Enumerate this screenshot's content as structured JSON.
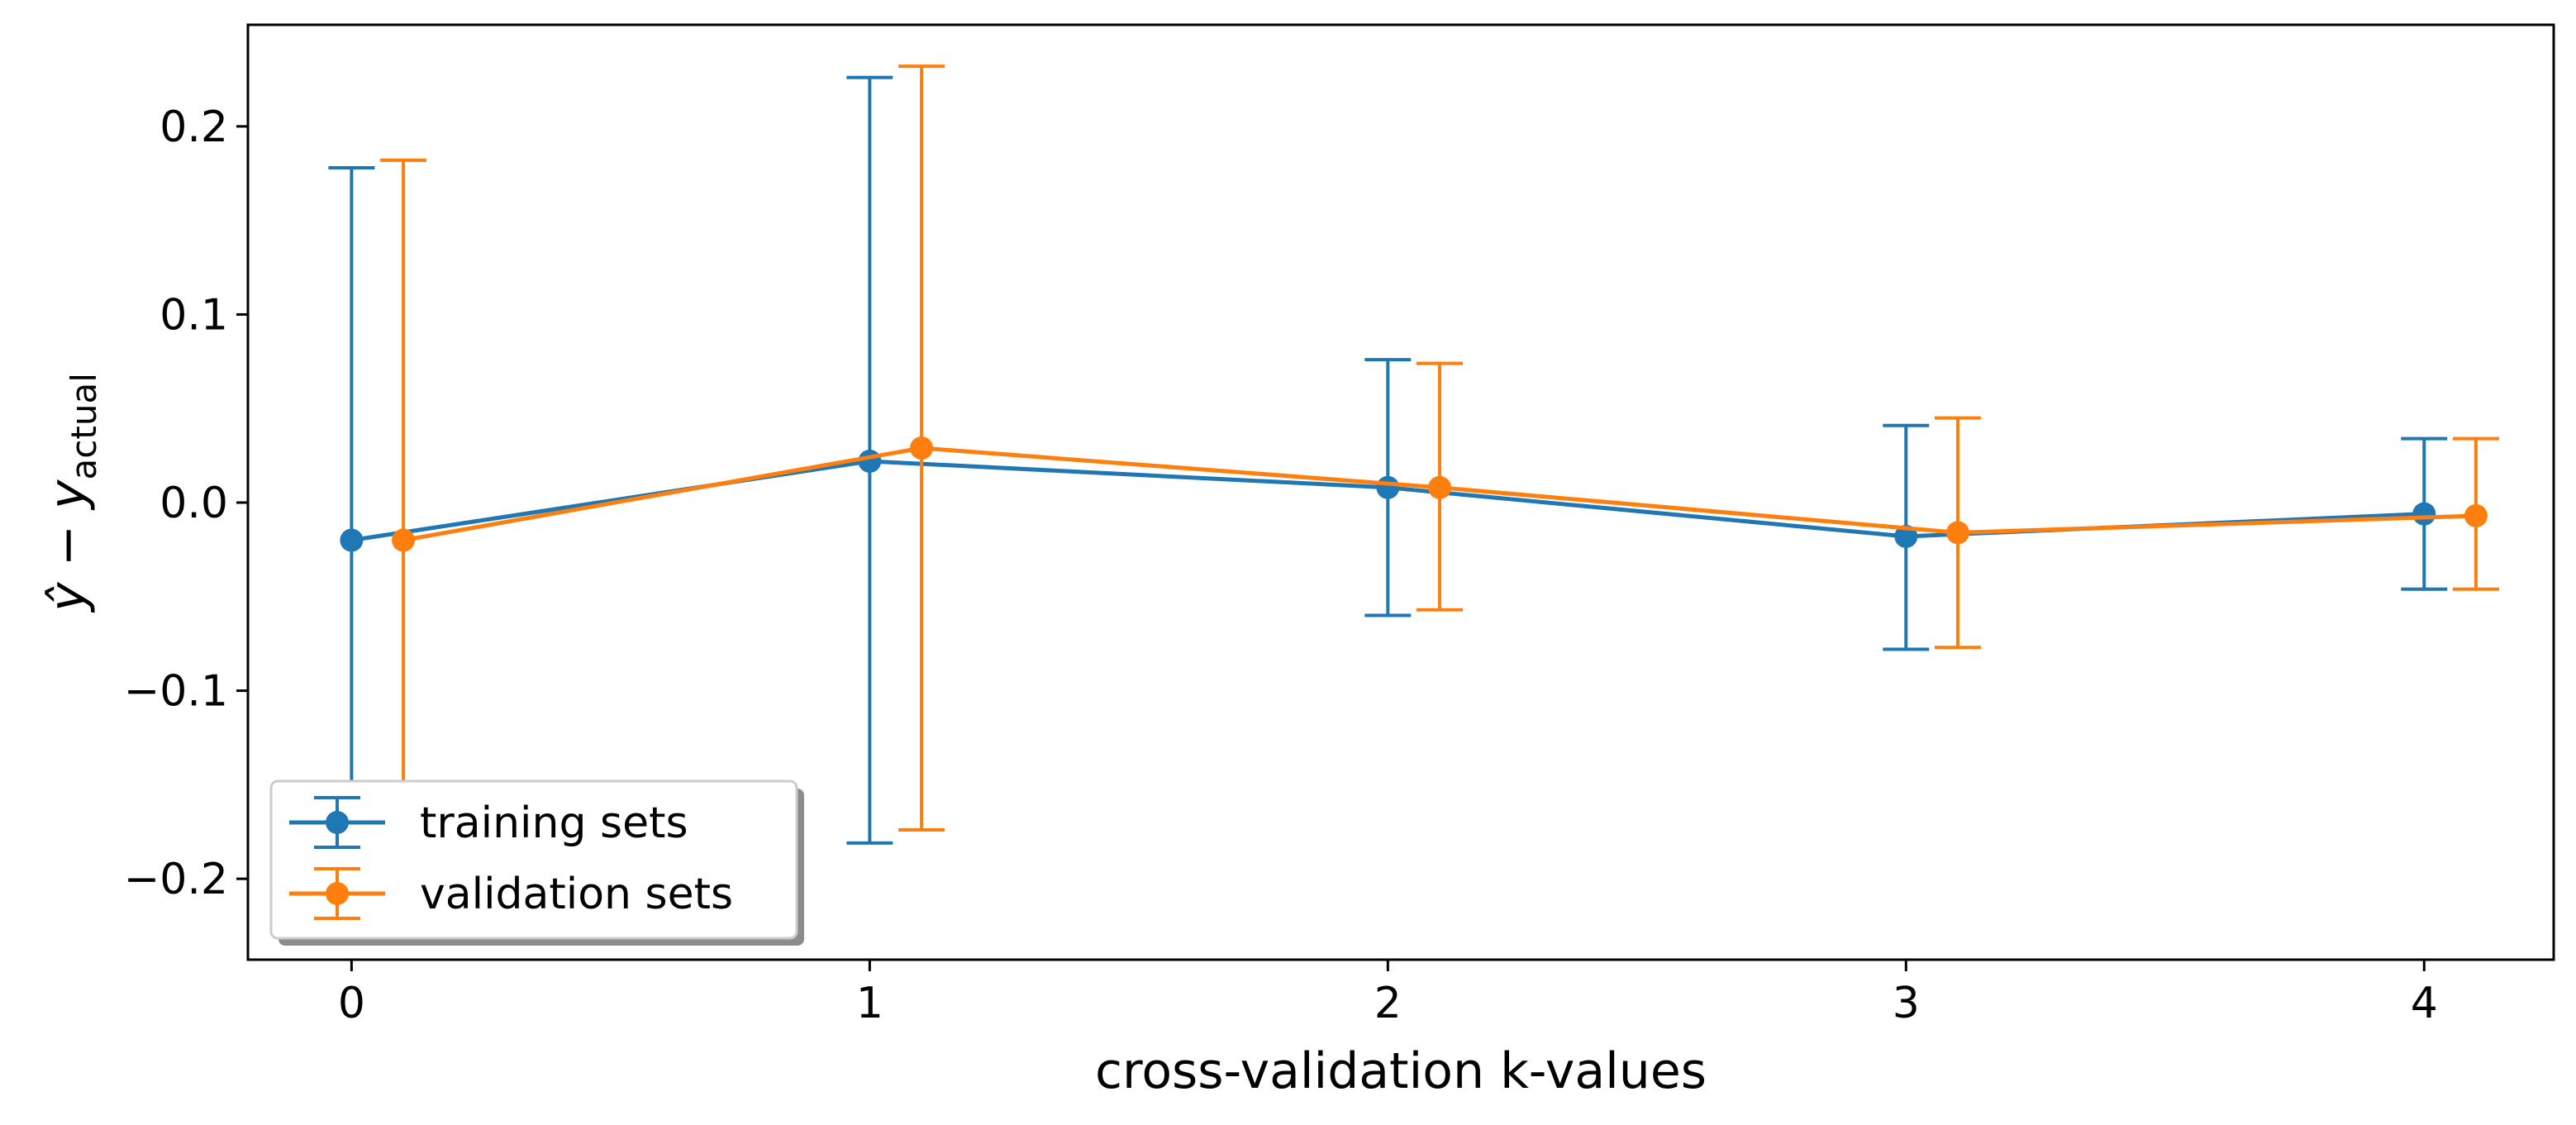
{
  "chart_data": {
    "type": "line",
    "subtype": "errorbar",
    "title": "",
    "xlabel": "cross-validation k-values",
    "ylabel": {
      "main": "ŷ − y",
      "subscript": "actual"
    },
    "x_ticks": [
      0,
      1,
      2,
      3,
      4
    ],
    "y_ticks": [
      -0.2,
      -0.1,
      0.0,
      0.1,
      0.2
    ],
    "y_tick_labels": [
      "−0.2",
      "−0.1",
      "0.0",
      "0.1",
      "0.2"
    ],
    "x_tick_labels": [
      "0",
      "1",
      "2",
      "3",
      "4"
    ],
    "xlim": [
      -0.2,
      4.25
    ],
    "ylim": [
      -0.243,
      0.254
    ],
    "grid": false,
    "legend_position": "lower-left",
    "series": [
      {
        "name": "training sets",
        "color": "#1f77b4",
        "x": [
          0,
          1,
          2,
          3,
          4
        ],
        "y": [
          -0.02,
          0.022,
          0.008,
          -0.018,
          -0.006
        ],
        "upper": [
          0.178,
          0.226,
          0.076,
          0.041,
          0.034
        ],
        "lower": [
          -0.218,
          -0.181,
          -0.06,
          -0.078,
          -0.046
        ]
      },
      {
        "name": "validation sets",
        "color": "#ff7f0e",
        "x": [
          0.1,
          1.1,
          2.1,
          3.1,
          4.1
        ],
        "y": [
          -0.02,
          0.029,
          0.008,
          -0.016,
          -0.007
        ],
        "upper": [
          0.182,
          0.232,
          0.074,
          0.045,
          0.034
        ],
        "lower": [
          -0.222,
          -0.174,
          -0.057,
          -0.077,
          -0.046
        ]
      }
    ]
  }
}
